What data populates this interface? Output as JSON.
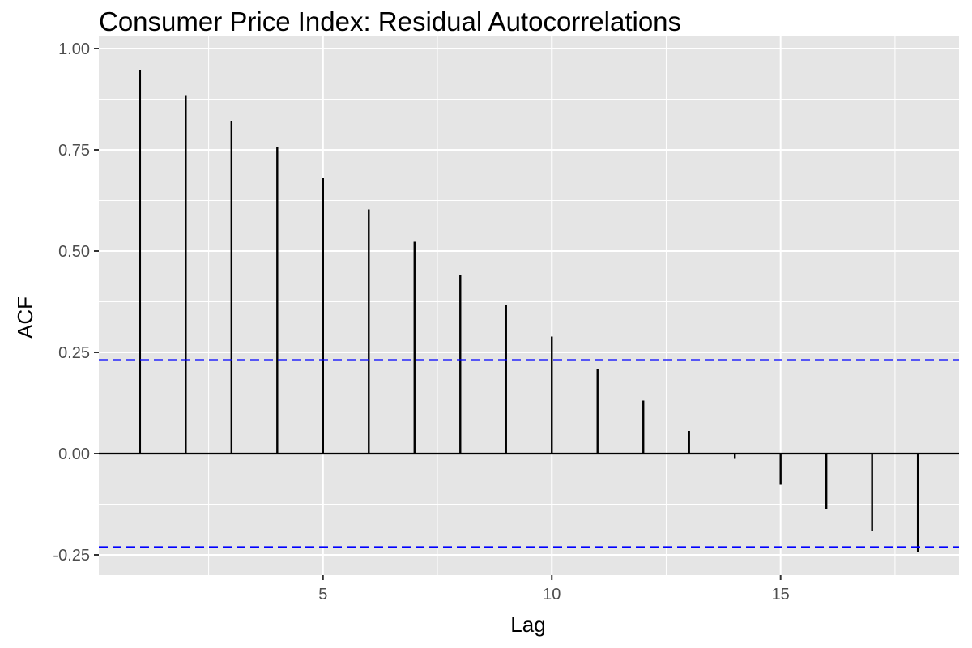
{
  "chart_data": {
    "type": "bar",
    "subtype": "acf-lollipop",
    "title": "Consumer Price Index: Residual Autocorrelations",
    "xlabel": "Lag",
    "ylabel": "ACF",
    "xlim": [
      0.1,
      18.9
    ],
    "ylim": [
      -0.3,
      1.03
    ],
    "x_ticks": [
      5,
      10,
      15
    ],
    "x_tick_labels": [
      "5",
      "10",
      "15"
    ],
    "y_ticks": [
      -0.25,
      0.0,
      0.25,
      0.5,
      0.75,
      1.0
    ],
    "y_tick_labels": [
      "-0.25",
      "0.00",
      "0.25",
      "0.50",
      "0.75",
      "1.00"
    ],
    "lags": [
      1,
      2,
      3,
      4,
      5,
      6,
      7,
      8,
      9,
      10,
      11,
      12,
      13,
      14,
      15,
      16,
      17,
      18
    ],
    "acf": [
      0.947,
      0.885,
      0.822,
      0.756,
      0.68,
      0.603,
      0.523,
      0.442,
      0.366,
      0.289,
      0.21,
      0.131,
      0.056,
      -0.013,
      -0.077,
      -0.136,
      -0.192,
      -0.243
    ],
    "confidence_bounds": [
      0.231,
      -0.231
    ],
    "grid": true,
    "colors": {
      "panel_background": "#e5e5e5",
      "grid_line": "#ffffff",
      "bar": "#000000",
      "zero_line": "#000000",
      "confidence_line": "#0000ff",
      "tick_label": "#4d4d4d"
    }
  }
}
